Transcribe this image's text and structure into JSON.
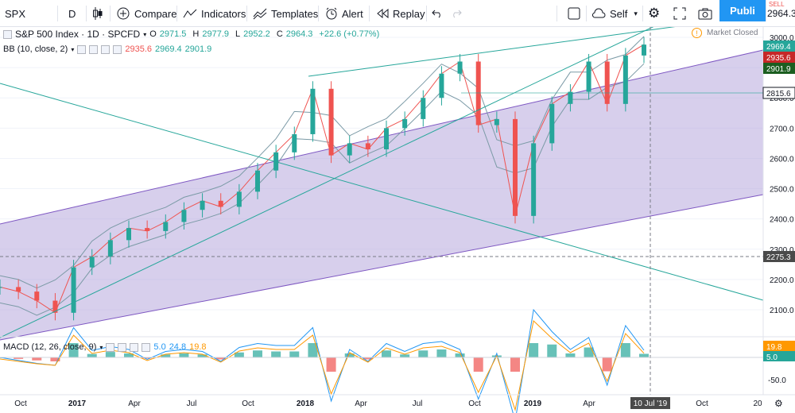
{
  "toolbar": {
    "symbol": "SPX",
    "interval": "D",
    "compare_label": "Compare",
    "indicators_label": "Indicators",
    "templates_label": "Templates",
    "alert_label": "Alert",
    "replay_label": "Replay",
    "user_label": "Self",
    "publish_label": "Publi",
    "sell_label": "SELL",
    "sell_price": "2964.3"
  },
  "legend": {
    "main_title": "S&P 500 Index · 1D · SPCFD",
    "open_label": "O",
    "open": "2971.5",
    "high_label": "H",
    "high": "2977.9",
    "low_label": "L",
    "low": "2952.2",
    "close_label": "C",
    "close": "2964.3",
    "change": "+22.6 (+0.77%)",
    "market_status": "Market Closed",
    "bb_label": "BB (10, close, 2)",
    "bb_values": [
      "2935.6",
      "2969.4",
      "2901.9"
    ],
    "macd_label": "MACD (12, 26, close, 9)",
    "macd_values": [
      "5.0",
      "24.8",
      "19.8"
    ]
  },
  "colors": {
    "up": "#26a69a",
    "down": "#ef5350",
    "bb_band": "#7b9aa6",
    "channel_fill": "#b7a7dc",
    "channel_line": "#7e57c2",
    "trendline": "#26a69a",
    "macd_line": "#2196f3",
    "signal_line": "#ff9800"
  },
  "chart_data": {
    "type": "candlestick",
    "symbol": "SPX",
    "y_ticks": [
      "3000.0",
      "2900.0",
      "2800.0",
      "2700.0",
      "2600.0",
      "2500.0",
      "2400.0",
      "2300.0",
      "2200.0",
      "2100.0"
    ],
    "x_ticks": [
      "Oct",
      "2017",
      "Apr",
      "Jul",
      "Oct",
      "2018",
      "Apr",
      "Jul",
      "Oct",
      "2019",
      "Apr",
      "Jul",
      "Oct",
      "20"
    ],
    "crosshair_date": "10 Jul '19",
    "price_labels": [
      {
        "value": "2969.4",
        "kind": "bb_upper"
      },
      {
        "value": "2935.6",
        "kind": "bb_basis"
      },
      {
        "value": "2901.9",
        "kind": "bb_lower"
      },
      {
        "value": "2815.6",
        "kind": "level"
      },
      {
        "value": "2275.3",
        "kind": "crosshair"
      }
    ],
    "macd_ticks": [
      "-50.0"
    ],
    "macd_price_labels": [
      "19.8",
      "5.0"
    ],
    "series": [
      {
        "name": "SPX",
        "points": [
          [
            "2016-08",
            2175
          ],
          [
            "2016-09",
            2160
          ],
          [
            "2016-10",
            2130
          ],
          [
            "2016-11",
            2090
          ],
          [
            "2016-12",
            2240
          ],
          [
            "2017-01",
            2275
          ],
          [
            "2017-02",
            2330
          ],
          [
            "2017-03",
            2370
          ],
          [
            "2017-04",
            2360
          ],
          [
            "2017-05",
            2390
          ],
          [
            "2017-06",
            2430
          ],
          [
            "2017-07",
            2460
          ],
          [
            "2017-08",
            2440
          ],
          [
            "2017-09",
            2490
          ],
          [
            "2017-10",
            2560
          ],
          [
            "2017-11",
            2620
          ],
          [
            "2017-12",
            2680
          ],
          [
            "2018-01",
            2830
          ],
          [
            "2018-02",
            2610
          ],
          [
            "2018-03",
            2650
          ],
          [
            "2018-04",
            2630
          ],
          [
            "2018-05",
            2700
          ],
          [
            "2018-06",
            2730
          ],
          [
            "2018-07",
            2800
          ],
          [
            "2018-08",
            2880
          ],
          [
            "2018-09",
            2920
          ],
          [
            "2018-10",
            2710
          ],
          [
            "2018-11",
            2730
          ],
          [
            "2018-12",
            2410
          ],
          [
            "2019-01",
            2650
          ],
          [
            "2019-02",
            2780
          ],
          [
            "2019-03",
            2820
          ],
          [
            "2019-04",
            2920
          ],
          [
            "2019-05",
            2780
          ],
          [
            "2019-06",
            2940
          ],
          [
            "2019-07",
            2976
          ]
        ]
      }
    ]
  }
}
